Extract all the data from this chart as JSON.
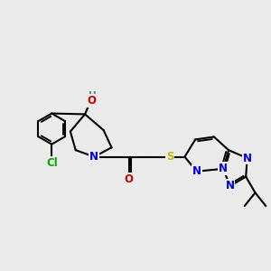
{
  "bg_color": "#ebebeb",
  "bond_color": "#000000",
  "bond_width": 1.5,
  "atom_colors": {
    "C": "#000000",
    "N": "#0000dd",
    "O": "#cc0000",
    "S": "#bbbb00",
    "Cl": "#00aa00",
    "H": "#558888"
  },
  "font_size": 8.5,
  "fig_width": 3.0,
  "fig_height": 3.0,
  "dpi": 100
}
